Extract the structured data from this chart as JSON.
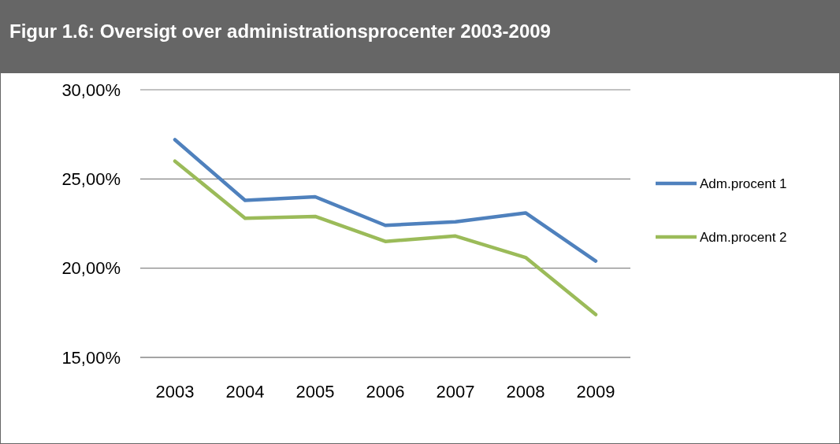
{
  "chart_data": {
    "type": "line",
    "title": "Figur 1.6: Oversigt over administrationsprocenter 2003-2009",
    "categories": [
      "2003",
      "2004",
      "2005",
      "2006",
      "2007",
      "2008",
      "2009"
    ],
    "series": [
      {
        "name": "Adm.procent 1",
        "color": "#4f81bd",
        "values": [
          27.2,
          23.8,
          24.0,
          22.4,
          22.6,
          23.1,
          20.4
        ]
      },
      {
        "name": "Adm.procent 2",
        "color": "#9bbb59",
        "values": [
          26.0,
          22.8,
          22.9,
          21.5,
          21.8,
          20.6,
          17.4
        ]
      }
    ],
    "ylim": [
      15,
      30
    ],
    "yticks": [
      {
        "value": 15,
        "label": "15,00%"
      },
      {
        "value": 20,
        "label": "20,00%"
      },
      {
        "value": 25,
        "label": "25,00%"
      },
      {
        "value": 30,
        "label": "30,00%"
      }
    ],
    "grid": "y",
    "legend": "right",
    "marker": "none",
    "line_style": "solid"
  }
}
